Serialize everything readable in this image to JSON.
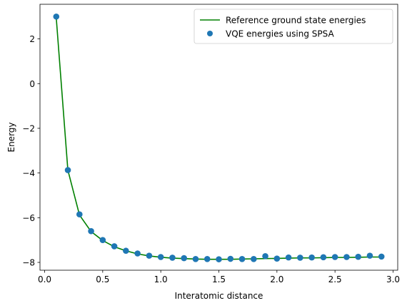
{
  "chart_data": {
    "type": "line",
    "xlabel": "Interatomic distance",
    "ylabel": "Energy",
    "xlim": [
      -0.04,
      3.04
    ],
    "ylim": [
      -8.35,
      3.55
    ],
    "xticks": [
      0.0,
      0.5,
      1.0,
      1.5,
      2.0,
      2.5,
      3.0
    ],
    "xtick_labels": [
      "0.0",
      "0.5",
      "1.0",
      "1.5",
      "2.0",
      "2.5",
      "3.0"
    ],
    "yticks": [
      -8,
      -6,
      -4,
      -2,
      0,
      2
    ],
    "ytick_labels": [
      "−8",
      "−6",
      "−4",
      "−2",
      "0",
      "2"
    ],
    "grid": false,
    "legend_position": "top-right",
    "series": [
      {
        "name": "Reference ground state energies",
        "kind": "line",
        "color": "#008000",
        "x": [
          0.1,
          0.2,
          0.3,
          0.4,
          0.5,
          0.6,
          0.7,
          0.8,
          0.9,
          1.0,
          1.1,
          1.2,
          1.3,
          1.4,
          1.5,
          1.6,
          1.7,
          1.8,
          1.9,
          2.0,
          2.1,
          2.2,
          2.3,
          2.4,
          2.5,
          2.6,
          2.7,
          2.8,
          2.9
        ],
        "values": [
          2.95,
          -3.87,
          -5.88,
          -6.62,
          -7.02,
          -7.3,
          -7.48,
          -7.62,
          -7.71,
          -7.77,
          -7.81,
          -7.83,
          -7.85,
          -7.86,
          -7.86,
          -7.86,
          -7.85,
          -7.84,
          -7.83,
          -7.82,
          -7.81,
          -7.8,
          -7.8,
          -7.79,
          -7.78,
          -7.78,
          -7.77,
          -7.76,
          -7.76
        ]
      },
      {
        "name": "VQE energies using SPSA",
        "kind": "scatter",
        "color": "#1f77b4",
        "x": [
          0.1,
          0.2,
          0.3,
          0.4,
          0.5,
          0.6,
          0.7,
          0.8,
          0.9,
          1.0,
          1.1,
          1.2,
          1.3,
          1.4,
          1.5,
          1.6,
          1.7,
          1.8,
          1.9,
          2.0,
          2.1,
          2.2,
          2.3,
          2.4,
          2.5,
          2.6,
          2.7,
          2.8,
          2.9
        ],
        "values": [
          3.0,
          -3.87,
          -5.85,
          -6.6,
          -7.0,
          -7.28,
          -7.48,
          -7.6,
          -7.7,
          -7.76,
          -7.79,
          -7.81,
          -7.85,
          -7.85,
          -7.86,
          -7.84,
          -7.85,
          -7.85,
          -7.72,
          -7.83,
          -7.78,
          -7.79,
          -7.78,
          -7.77,
          -7.76,
          -7.76,
          -7.75,
          -7.7,
          -7.74
        ]
      }
    ]
  }
}
